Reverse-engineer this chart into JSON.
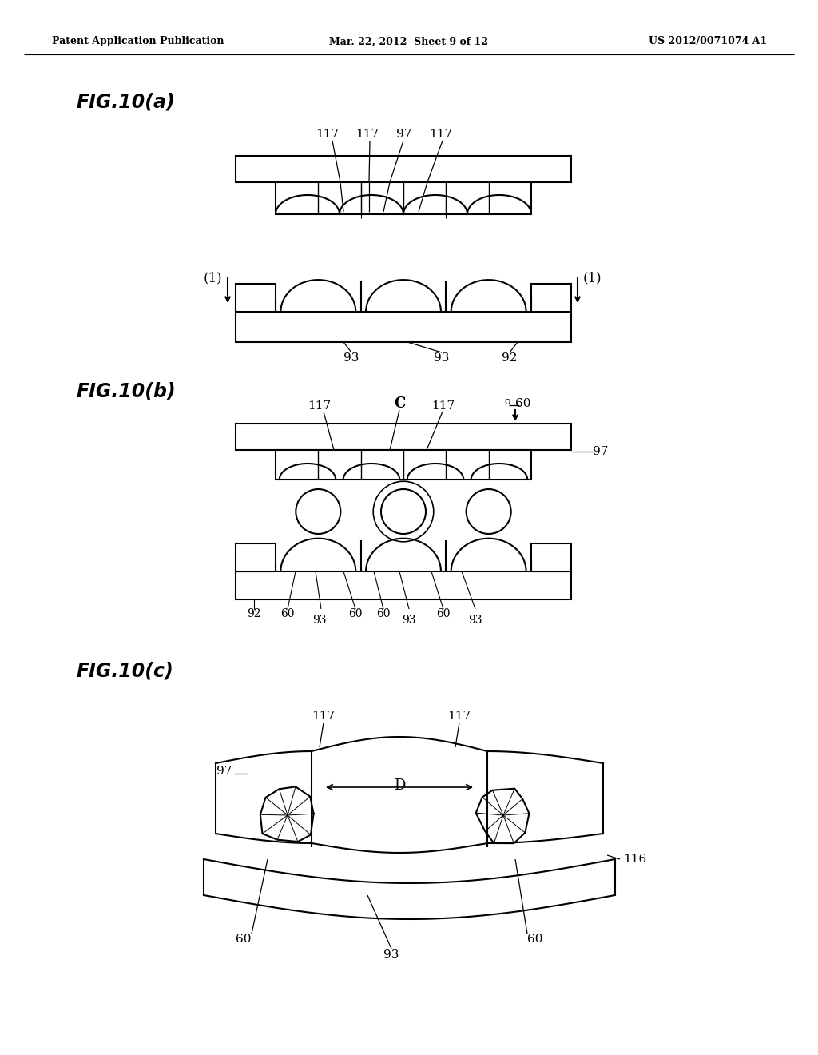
{
  "background_color": "#ffffff",
  "header_left": "Patent Application Publication",
  "header_center": "Mar. 22, 2012  Sheet 9 of 12",
  "header_right": "US 2012/0071074 A1"
}
